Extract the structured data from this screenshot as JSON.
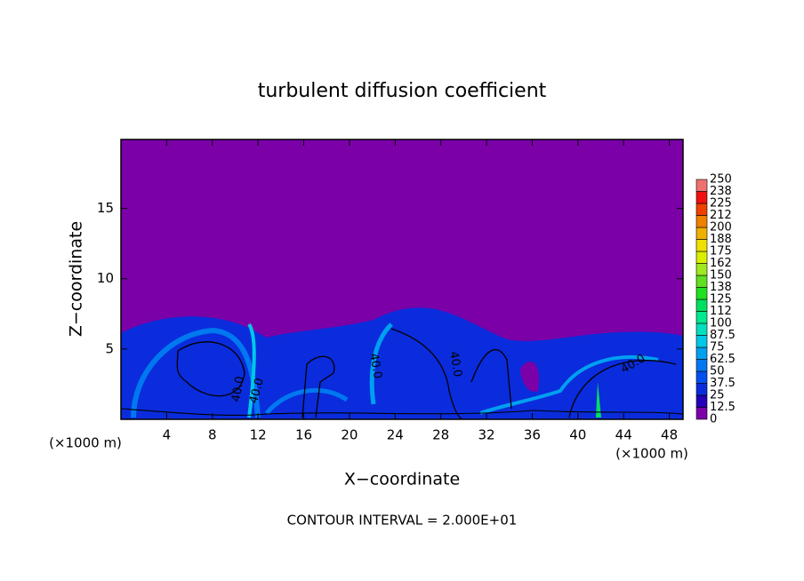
{
  "chart_data": {
    "type": "contour",
    "title": "turbulent diffusion coefficient",
    "x_label": "X−coordinate",
    "y_label": "Z−coordinate",
    "x_unit": "(×1000 m)",
    "x_unit_right": "(×1000 m)",
    "footer": "CONTOUR INTERVAL = 2.000E+01",
    "xlim": [
      0,
      49.2
    ],
    "xticks": [
      4,
      8,
      12,
      16,
      20,
      24,
      28,
      32,
      36,
      40,
      44,
      48
    ],
    "ylim": [
      0,
      19.9
    ],
    "yticks": [
      5,
      10,
      15
    ],
    "contour_labels": [
      "40.0",
      "40.0",
      "40.0",
      "40.0",
      "40.0"
    ],
    "colorbar": {
      "levels": [
        0,
        12.5,
        25,
        37.5,
        50,
        62.5,
        75,
        87.5,
        100,
        {
          "value": 112.5,
          "label": "112"
        },
        125,
        {
          "value": 137.5,
          "label": "138"
        },
        150,
        {
          "value": 162.5,
          "label": "162"
        },
        175,
        {
          "value": 187.5,
          "label": "188"
        },
        200,
        {
          "value": 212.5,
          "label": "212"
        },
        225,
        {
          "value": 237.5,
          "label": "238"
        },
        250
      ],
      "colors": [
        "#7b00a8",
        "#2400b8",
        "#0a2cdc",
        "#0050f0",
        "#0078f0",
        "#00a0f0",
        "#00c8e8",
        "#00e0c0",
        "#00e890",
        "#00e060",
        "#20e020",
        "#60e020",
        "#a0e820",
        "#d8f000",
        "#f0e000",
        "#f0b000",
        "#f08000",
        "#f04000",
        "#f01010",
        "#f07070"
      ]
    }
  }
}
